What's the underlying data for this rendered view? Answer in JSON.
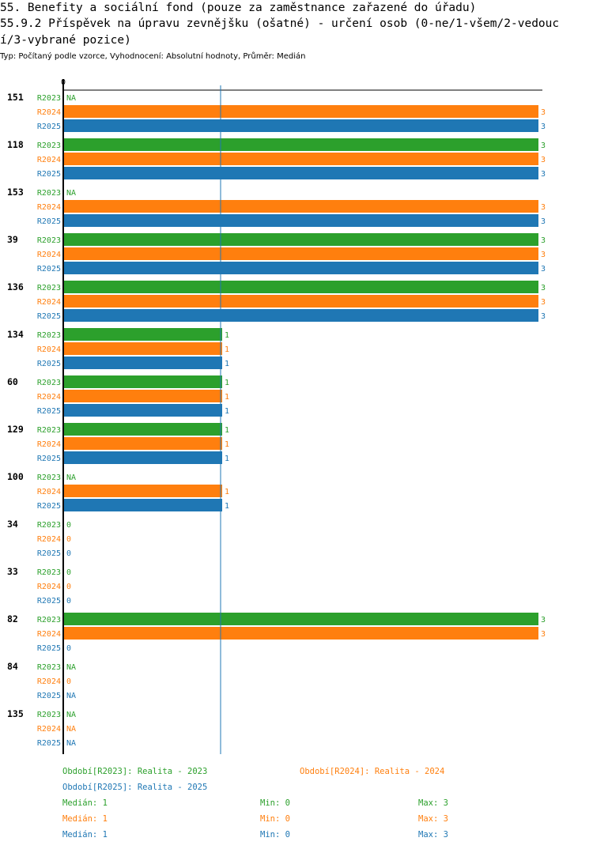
{
  "header": {
    "title_line1": "55. Benefity a sociální fond (pouze za zaměstnance zařazené do úřadu)",
    "title_line2": "55.9.2 Příspěvek na úpravu zevnějšku (ošatné) - určení osob (0-ne/1-všem/2-vedouc",
    "title_line3": "í/3-vybrané pozice)",
    "subtitle": "Typ: Počítaný podle vzorce, Vyhodnocení: Absolutní hodnoty, Průměr: Medián"
  },
  "colors": {
    "R2023": "#2ca02c",
    "R2024": "#ff7f0e",
    "R2025": "#1f77b4"
  },
  "chart_data": {
    "type": "bar",
    "orientation": "horizontal",
    "axis_zero_label": "0",
    "xlim": [
      0,
      3
    ],
    "series_names": [
      "R2023",
      "R2024",
      "R2025"
    ],
    "groups": [
      {
        "label": "151",
        "values": [
          null,
          3,
          3
        ]
      },
      {
        "label": "118",
        "values": [
          3,
          3,
          3
        ]
      },
      {
        "label": "153",
        "values": [
          null,
          3,
          3
        ]
      },
      {
        "label": "39",
        "values": [
          3,
          3,
          3
        ]
      },
      {
        "label": "136",
        "values": [
          3,
          3,
          3
        ]
      },
      {
        "label": "134",
        "values": [
          1,
          1,
          1
        ]
      },
      {
        "label": "60",
        "values": [
          1,
          1,
          1
        ]
      },
      {
        "label": "129",
        "values": [
          1,
          1,
          1
        ]
      },
      {
        "label": "100",
        "values": [
          null,
          1,
          1
        ]
      },
      {
        "label": "34",
        "values": [
          0,
          0,
          0
        ]
      },
      {
        "label": "33",
        "values": [
          0,
          0,
          0
        ]
      },
      {
        "label": "82",
        "values": [
          3,
          3,
          0
        ]
      },
      {
        "label": "84",
        "values": [
          null,
          0,
          null
        ]
      },
      {
        "label": "135",
        "values": [
          null,
          null,
          null
        ]
      }
    ],
    "na_label": "NA",
    "reference_line_value": 1
  },
  "legend": {
    "periods": [
      {
        "key": "R2023",
        "text": "Období[R2023]: Realita - 2023"
      },
      {
        "key": "R2024",
        "text": "Období[R2024]: Realita - 2024"
      },
      {
        "key": "R2025",
        "text": "Období[R2025]: Realita - 2025"
      }
    ],
    "stats": [
      {
        "key": "R2023",
        "median": "Medián: 1",
        "min": "Min: 0",
        "max": "Max: 3"
      },
      {
        "key": "R2024",
        "median": "Medián: 1",
        "min": "Min: 0",
        "max": "Max: 3"
      },
      {
        "key": "R2025",
        "median": "Medián: 1",
        "min": "Min: 0",
        "max": "Max: 3"
      }
    ]
  }
}
